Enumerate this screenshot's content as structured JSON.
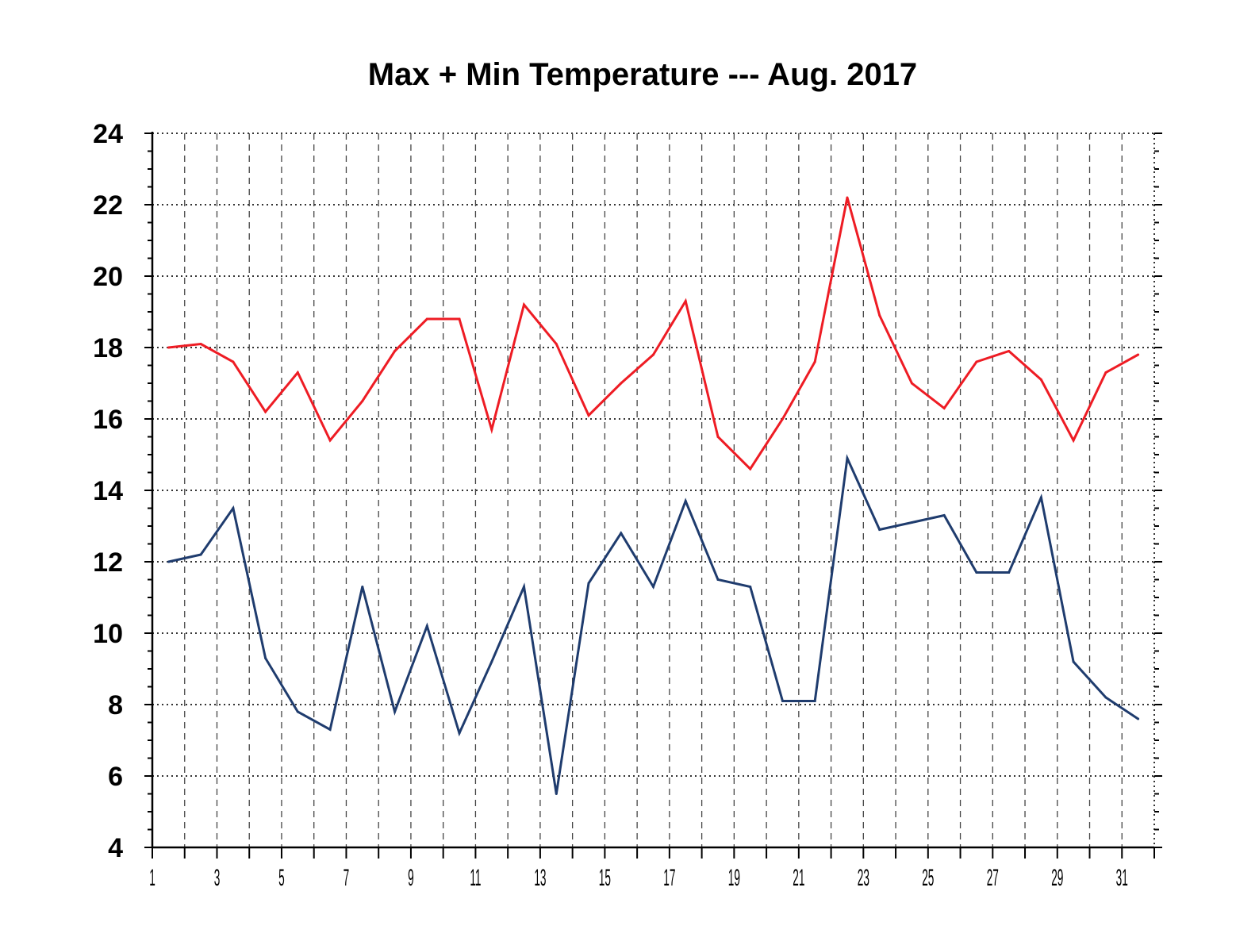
{
  "chart_data": {
    "type": "line",
    "title": "Max + Min Temperature --- Aug. 2017",
    "xlabel": "",
    "ylabel": "",
    "ylim": [
      4,
      24
    ],
    "yticks": [
      4,
      6,
      8,
      10,
      12,
      14,
      16,
      18,
      20,
      22,
      24
    ],
    "xlim": [
      1,
      32
    ],
    "xticks": [
      1,
      3,
      5,
      7,
      9,
      11,
      13,
      15,
      17,
      19,
      21,
      23,
      25,
      27,
      29,
      31
    ],
    "grid": true,
    "x": [
      1.5,
      2.5,
      3.5,
      4.5,
      5.5,
      6.5,
      7.5,
      8.5,
      9.5,
      10.5,
      11.5,
      12.5,
      13.5,
      14.5,
      15.5,
      16.5,
      17.5,
      18.5,
      19.5,
      20.5,
      21.5,
      22.5,
      23.5,
      24.5,
      25.5,
      26.5,
      27.5,
      28.5,
      29.5,
      30.5,
      31.5
    ],
    "series": [
      {
        "color": "#ee1c24",
        "values": [
          18.0,
          18.1,
          17.6,
          16.2,
          17.3,
          15.4,
          16.5,
          17.9,
          18.8,
          18.8,
          15.7,
          19.2,
          18.1,
          16.1,
          17.0,
          17.8,
          19.3,
          15.5,
          14.6,
          16.0,
          17.6,
          22.2,
          18.9,
          17.0,
          16.3,
          17.6,
          17.9,
          17.1,
          15.4,
          17.3,
          17.8
        ]
      },
      {
        "color": "#1f3c6e",
        "values": [
          12.0,
          12.2,
          13.5,
          9.3,
          7.8,
          7.3,
          11.3,
          7.8,
          10.2,
          7.2,
          9.2,
          11.3,
          5.5,
          11.4,
          12.8,
          11.3,
          13.7,
          11.5,
          11.3,
          8.1,
          8.1,
          14.9,
          12.9,
          13.1,
          13.3,
          11.7,
          11.7,
          13.8,
          9.2,
          8.2,
          7.6
        ]
      }
    ]
  }
}
